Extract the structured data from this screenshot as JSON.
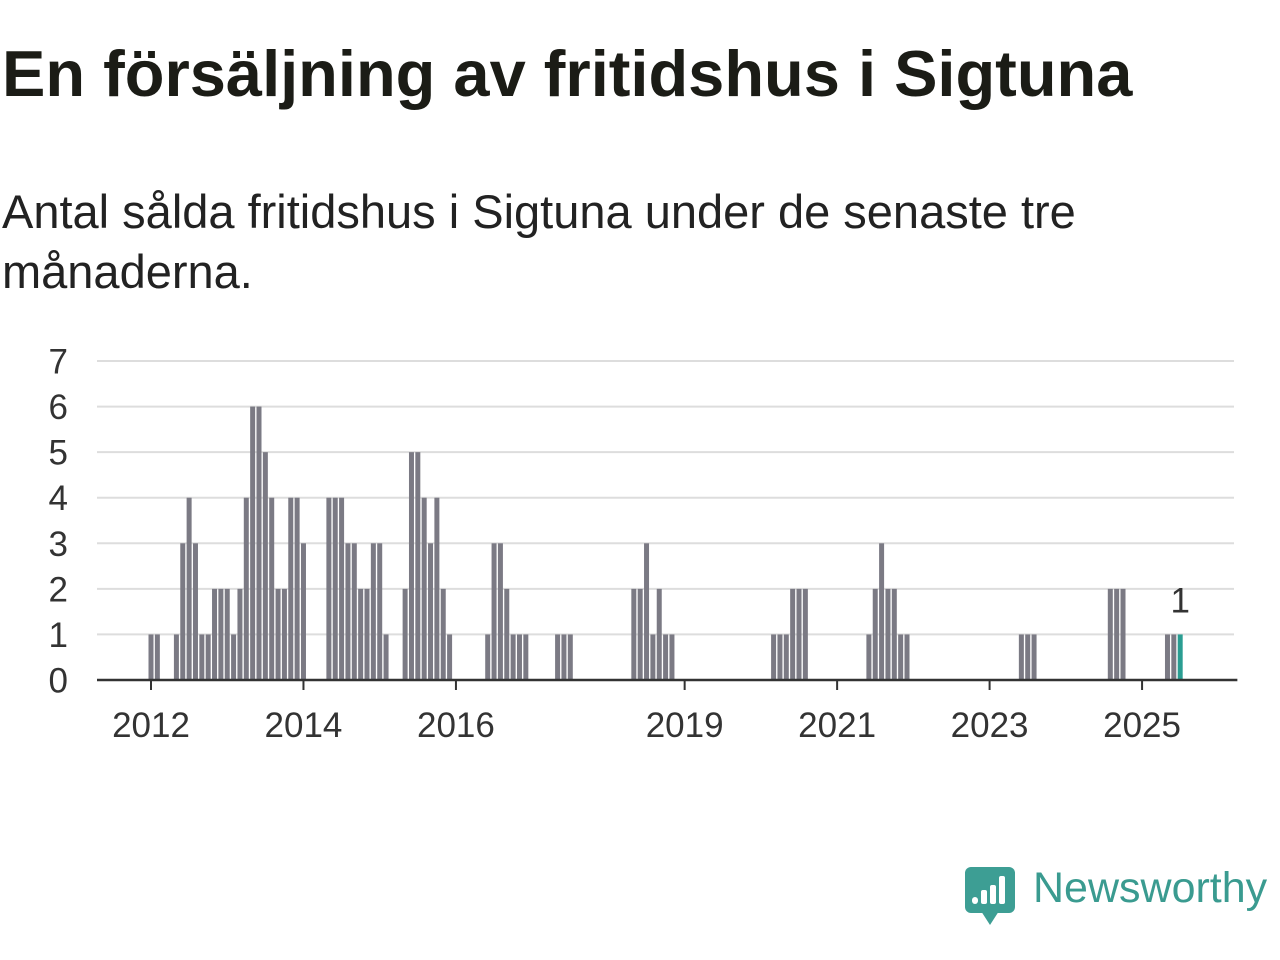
{
  "chart_data": {
    "type": "bar",
    "title": "En försäljning av fritidshus i Sigtuna",
    "subtitle": "Antal sålda fritidshus i Sigtuna under de senaste tre månaderna.",
    "x": [
      "2012-01",
      "2012-02",
      "2012-03",
      "2012-04",
      "2012-05",
      "2012-06",
      "2012-07",
      "2012-08",
      "2012-09",
      "2012-10",
      "2012-11",
      "2012-12",
      "2013-01",
      "2013-02",
      "2013-03",
      "2013-04",
      "2013-05",
      "2013-06",
      "2013-07",
      "2013-08",
      "2013-09",
      "2013-10",
      "2013-11",
      "2013-12",
      "2014-01",
      "2014-02",
      "2014-03",
      "2014-04",
      "2014-05",
      "2014-06",
      "2014-07",
      "2014-08",
      "2014-09",
      "2014-10",
      "2014-11",
      "2014-12",
      "2015-01",
      "2015-02",
      "2015-03",
      "2015-04",
      "2015-05",
      "2015-06",
      "2015-07",
      "2015-08",
      "2015-09",
      "2015-10",
      "2015-11",
      "2015-12",
      "2016-01",
      "2016-02",
      "2016-03",
      "2016-04",
      "2016-05",
      "2016-06",
      "2016-07",
      "2016-08",
      "2016-09",
      "2016-10",
      "2016-11",
      "2016-12",
      "2017-01",
      "2017-02",
      "2017-03",
      "2017-04",
      "2017-05",
      "2017-06",
      "2017-07",
      "2017-08",
      "2017-09",
      "2017-10",
      "2017-11",
      "2017-12",
      "2018-01",
      "2018-02",
      "2018-03",
      "2018-04",
      "2018-05",
      "2018-06",
      "2018-07",
      "2018-08",
      "2018-09",
      "2018-10",
      "2018-11",
      "2018-12",
      "2019-01",
      "2019-02",
      "2019-03",
      "2019-04",
      "2019-05",
      "2019-06",
      "2019-07",
      "2019-08",
      "2019-09",
      "2019-10",
      "2019-11",
      "2019-12",
      "2020-01",
      "2020-02",
      "2020-03",
      "2020-04",
      "2020-05",
      "2020-06",
      "2020-07",
      "2020-08",
      "2020-09",
      "2020-10",
      "2020-11",
      "2020-12",
      "2021-01",
      "2021-02",
      "2021-03",
      "2021-04",
      "2021-05",
      "2021-06",
      "2021-07",
      "2021-08",
      "2021-09",
      "2021-10",
      "2021-11",
      "2021-12",
      "2022-01",
      "2022-02",
      "2022-03",
      "2022-04",
      "2022-05",
      "2022-06",
      "2022-07",
      "2022-08",
      "2022-09",
      "2022-10",
      "2022-11",
      "2022-12",
      "2023-01",
      "2023-02",
      "2023-03",
      "2023-04",
      "2023-05",
      "2023-06",
      "2023-07",
      "2023-08",
      "2023-09",
      "2023-10",
      "2023-11",
      "2023-12",
      "2024-01",
      "2024-02",
      "2024-03",
      "2024-04",
      "2024-05",
      "2024-06",
      "2024-07",
      "2024-08",
      "2024-09",
      "2024-10",
      "2024-11",
      "2024-12",
      "2025-01",
      "2025-02",
      "2025-03",
      "2025-04",
      "2025-05",
      "2025-06",
      "2025-07"
    ],
    "values": [
      1,
      1,
      0,
      0,
      1,
      3,
      4,
      3,
      1,
      1,
      2,
      2,
      2,
      1,
      2,
      4,
      6,
      6,
      5,
      4,
      2,
      2,
      4,
      4,
      3,
      0,
      0,
      0,
      4,
      4,
      4,
      3,
      3,
      2,
      2,
      3,
      3,
      1,
      0,
      0,
      2,
      5,
      5,
      4,
      3,
      4,
      2,
      1,
      0,
      0,
      0,
      0,
      0,
      1,
      3,
      3,
      2,
      1,
      1,
      1,
      0,
      0,
      0,
      0,
      1,
      1,
      1,
      0,
      0,
      0,
      0,
      0,
      0,
      0,
      0,
      0,
      2,
      2,
      3,
      1,
      2,
      1,
      1,
      0,
      0,
      0,
      0,
      0,
      0,
      0,
      0,
      0,
      0,
      0,
      0,
      0,
      0,
      0,
      1,
      1,
      1,
      2,
      2,
      2,
      0,
      0,
      0,
      0,
      0,
      0,
      0,
      0,
      0,
      1,
      2,
      3,
      2,
      2,
      1,
      1,
      0,
      0,
      0,
      0,
      0,
      0,
      0,
      0,
      0,
      0,
      0,
      0,
      0,
      0,
      0,
      0,
      0,
      1,
      1,
      1,
      0,
      0,
      0,
      0,
      0,
      0,
      0,
      0,
      0,
      0,
      0,
      2,
      2,
      2,
      0,
      0,
      0,
      0,
      0,
      0,
      1,
      1,
      1
    ],
    "xlim": [
      "2011-05",
      "2026-04"
    ],
    "ylim": [
      0,
      7
    ],
    "yticks": [
      0,
      1,
      2,
      3,
      4,
      5,
      6,
      7
    ],
    "xticks": [
      "2012",
      "2014",
      "2016",
      "2019",
      "2021",
      "2023",
      "2025"
    ],
    "grid": true,
    "highlight": {
      "x": "2025-07",
      "label": "1",
      "color": "#2a9d92"
    },
    "colors": {
      "bar": "#7b7a84",
      "grid": "#dddddd",
      "axis": "#333333"
    }
  },
  "branding": {
    "logo_text": "Newsworthy",
    "icon": "newsworthy-chart-bubble-icon",
    "color": "#3a9b90"
  }
}
